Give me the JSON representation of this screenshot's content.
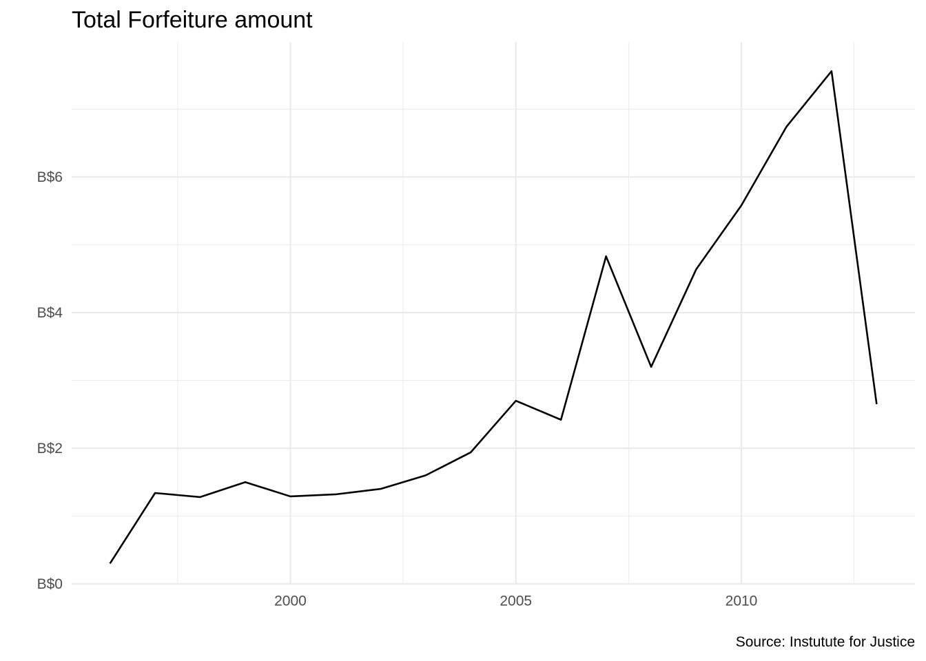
{
  "chart_data": {
    "type": "line",
    "title": "Total Forfeiture amount",
    "caption": "Source: Instutute for Justice",
    "xlabel": "",
    "ylabel": "",
    "x": [
      1996,
      1997,
      1998,
      1999,
      2000,
      2001,
      2002,
      2003,
      2004,
      2005,
      2006,
      2007,
      2008,
      2009,
      2010,
      2011,
      2012,
      2013
    ],
    "series": [
      {
        "values": [
          0.3,
          1.34,
          1.28,
          1.5,
          1.29,
          1.32,
          1.4,
          1.6,
          1.94,
          2.7,
          2.42,
          4.83,
          3.2,
          4.64,
          5.58,
          6.74,
          7.56,
          2.65
        ]
      }
    ],
    "xlim": [
      1995.15,
      2013.85
    ],
    "ylim": [
      0,
      7.99
    ],
    "x_major_ticks": [
      2000,
      2005,
      2010
    ],
    "x_minor_ticks": [
      1997.5,
      2002.5,
      2007.5,
      2012.5
    ],
    "y_major_ticks": [
      0,
      2,
      4,
      6
    ],
    "y_minor_ticks": [
      1,
      3,
      5,
      7
    ],
    "x_tick_labels": [
      "2000",
      "2005",
      "2010"
    ],
    "y_tick_labels": [
      "B$0",
      "B$2",
      "B$4",
      "B$6"
    ],
    "grid": true,
    "legend": "none",
    "line_color": "#000000",
    "grid_color": "#ebebeb"
  }
}
